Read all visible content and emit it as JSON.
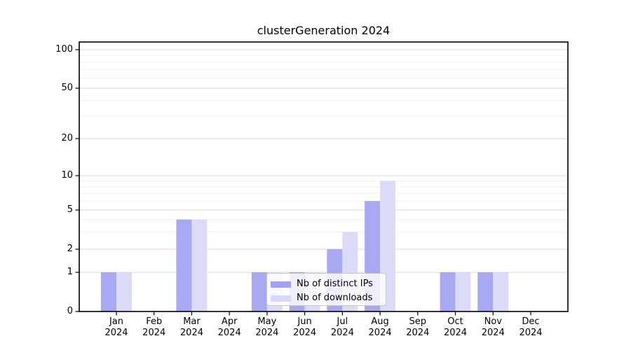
{
  "chart_data": {
    "type": "bar",
    "title": "clusterGeneration 2024",
    "categories": [
      "Jan 2024",
      "Feb 2024",
      "Mar 2024",
      "Apr 2024",
      "May 2024",
      "Jun 2024",
      "Jul 2024",
      "Aug 2024",
      "Sep 2024",
      "Oct 2024",
      "Nov 2024",
      "Dec 2024"
    ],
    "category_month_labels": [
      "Jan",
      "Feb",
      "Mar",
      "Apr",
      "May",
      "Jun",
      "Jul",
      "Aug",
      "Sep",
      "Oct",
      "Nov",
      "Dec"
    ],
    "category_year_label": "2024",
    "series": [
      {
        "name": "Nb of distinct IPs",
        "color": "#a2a2f2",
        "values": [
          1,
          0,
          4,
          0,
          1,
          1,
          2,
          6,
          0,
          1,
          1,
          0
        ]
      },
      {
        "name": "Nb of downloads",
        "color": "#d8d8f8",
        "values": [
          1,
          0,
          4,
          0,
          1,
          1,
          3,
          9,
          0,
          1,
          1,
          0
        ]
      }
    ],
    "xlabel": "",
    "ylabel": "",
    "y_axis": {
      "scale": "log (with 0 baseline)",
      "tick_labels": [
        "0",
        "1",
        "2",
        "5",
        "10",
        "20",
        "50",
        "100"
      ],
      "major_ticks": [
        0,
        1,
        2,
        5,
        10,
        20,
        50,
        100
      ],
      "minor_gridlines": [
        3,
        4,
        6,
        7,
        8,
        9,
        30,
        40,
        60,
        70,
        80,
        90
      ],
      "ylim": [
        0,
        115
      ]
    },
    "grid": "horizontal major+minor",
    "legend": {
      "position": "inside-bottom-center",
      "entries": [
        "Nb of distinct IPs",
        "Nb of downloads"
      ]
    }
  },
  "colors": {
    "bar_distinct_ips": "#a2a2f2",
    "bar_downloads": "#d8d8f8",
    "grid_major": "#d9d9d9",
    "grid_minor": "#f1f1f1",
    "axis_frame": "#000000",
    "legend_border": "#c9c9c9",
    "legend_background": "rgba(255,255,255,0.8)",
    "text": "#000000",
    "background": "#ffffff"
  }
}
